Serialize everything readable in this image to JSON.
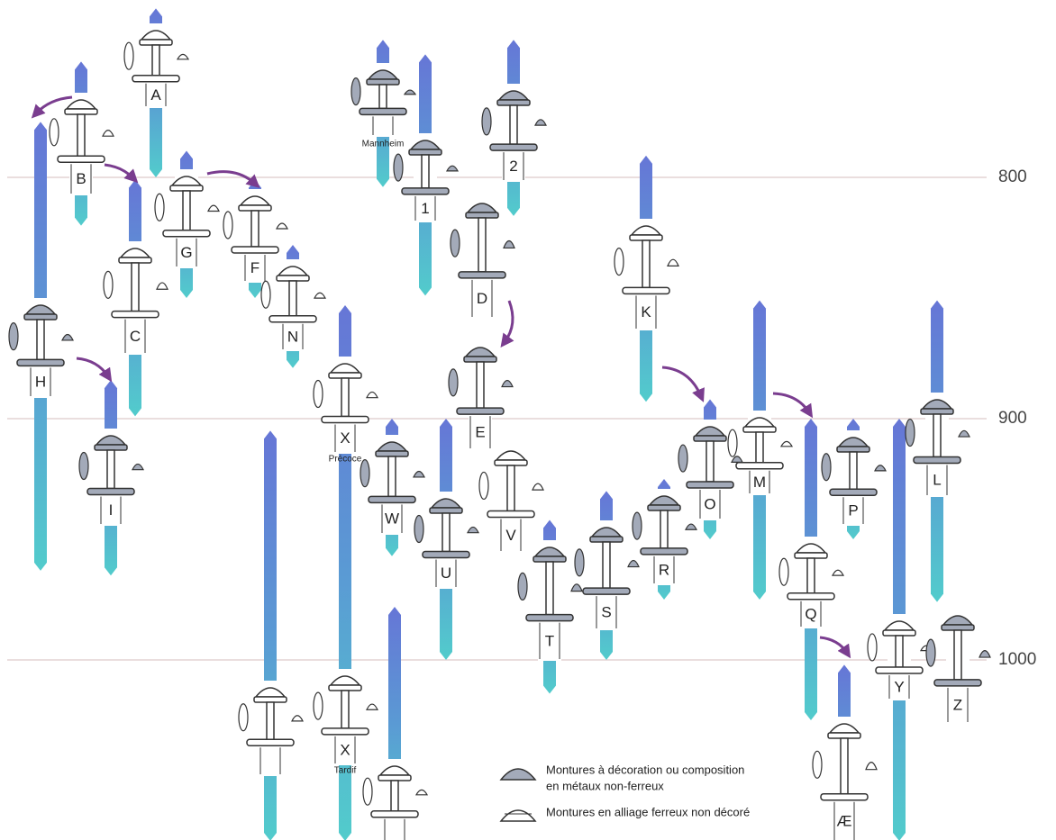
{
  "axis": {
    "ticks": [
      800,
      900,
      1000
    ]
  },
  "nodes": [
    {
      "label": "A",
      "years": [
        730,
        800
      ],
      "decorated": false
    },
    {
      "label": "B",
      "years": [
        752,
        820
      ],
      "decorated": false
    },
    {
      "label": "H",
      "years": [
        777,
        963
      ],
      "decorated": true
    },
    {
      "label": "C",
      "years": [
        801,
        899
      ],
      "decorated": false
    },
    {
      "label": "G",
      "years": [
        789,
        850
      ],
      "decorated": false
    },
    {
      "label": "F",
      "years": [
        801,
        850
      ],
      "decorated": false
    },
    {
      "label": "N",
      "years": [
        828,
        879
      ],
      "decorated": false
    },
    {
      "label": "I",
      "years": [
        884,
        965
      ],
      "decorated": true
    },
    {
      "label": "X",
      "sublabel": "Précoce",
      "years": [
        853,
        1075
      ],
      "decorated": false
    },
    {
      "label": "X",
      "sublabel": "Tardif",
      "decorated": false
    },
    {
      "name": "Mannheim",
      "years": [
        743,
        804
      ],
      "decorated": true
    },
    {
      "label": "1",
      "years": [
        749,
        849
      ],
      "decorated": true
    },
    {
      "label": "2",
      "years": [
        743,
        816
      ],
      "decorated": true
    },
    {
      "label": "D",
      "decorated": true
    },
    {
      "label": "E",
      "decorated": true
    },
    {
      "label": "K",
      "years": [
        791,
        893
      ],
      "decorated": false
    },
    {
      "label": "W",
      "years": [
        900,
        957
      ],
      "decorated": true
    },
    {
      "label": "U",
      "years": [
        900,
        1000
      ],
      "decorated": true
    },
    {
      "label": "V",
      "decorated": false
    },
    {
      "label": "T",
      "years": [
        942,
        1014
      ],
      "decorated": true
    },
    {
      "label": "S",
      "years": [
        930,
        1000
      ],
      "decorated": true
    },
    {
      "label": "R",
      "years": [
        925,
        975
      ],
      "decorated": true
    },
    {
      "label": "O",
      "years": [
        892,
        950
      ],
      "decorated": true
    },
    {
      "label": "M",
      "years": [
        851,
        975
      ],
      "decorated": false
    },
    {
      "label": "Q",
      "years": [
        900,
        1025
      ],
      "decorated": false
    },
    {
      "label": "P",
      "years": [
        900,
        950
      ],
      "decorated": true
    },
    {
      "label": "L",
      "years": [
        851,
        976
      ],
      "decorated": true
    },
    {
      "label": "Y",
      "years": [
        900,
        1075
      ],
      "decorated": false
    },
    {
      "label": "Z",
      "decorated": true
    },
    {
      "label": "Æ",
      "years": [
        1002,
        1075
      ],
      "decorated": false
    },
    {
      "years": [
        905,
        1075
      ],
      "decorated": false
    },
    {
      "years": [
        978,
        1075
      ],
      "decorated": false
    }
  ],
  "legend": {
    "decorated": [
      "Montures à décoration ou composition",
      "en métaux non-ferreux"
    ],
    "plain": [
      "Montures en alliage ferreux non décoré"
    ]
  }
}
